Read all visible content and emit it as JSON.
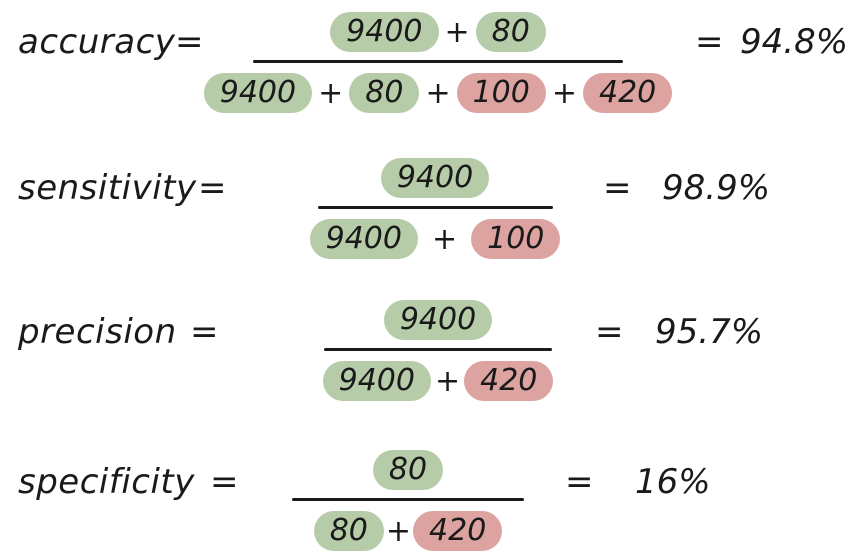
{
  "colors": {
    "good": "#b6cca8",
    "bad": "#dca3a1",
    "ink": "#1a1a1a"
  },
  "eq_sign": "=",
  "plus_sign": "+",
  "rows": [
    {
      "label": "accuracy",
      "numerator": [
        {
          "v": "9400",
          "k": "good"
        },
        {
          "v": "80",
          "k": "good"
        }
      ],
      "denominator": [
        {
          "v": "9400",
          "k": "good"
        },
        {
          "v": "80",
          "k": "good"
        },
        {
          "v": "100",
          "k": "bad"
        },
        {
          "v": "420",
          "k": "bad"
        }
      ],
      "result": "94.8%"
    },
    {
      "label": "sensitivity",
      "numerator": [
        {
          "v": "9400",
          "k": "good"
        }
      ],
      "denominator": [
        {
          "v": "9400",
          "k": "good"
        },
        {
          "v": "100",
          "k": "bad"
        }
      ],
      "result": "98.9%"
    },
    {
      "label": "precision",
      "numerator": [
        {
          "v": "9400",
          "k": "good"
        }
      ],
      "denominator": [
        {
          "v": "9400",
          "k": "good"
        },
        {
          "v": "420",
          "k": "bad"
        }
      ],
      "result": "95.7%"
    },
    {
      "label": "specificity",
      "numerator": [
        {
          "v": "80",
          "k": "good"
        }
      ],
      "denominator": [
        {
          "v": "80",
          "k": "good"
        },
        {
          "v": "420",
          "k": "bad"
        }
      ],
      "result": "16%"
    }
  ]
}
